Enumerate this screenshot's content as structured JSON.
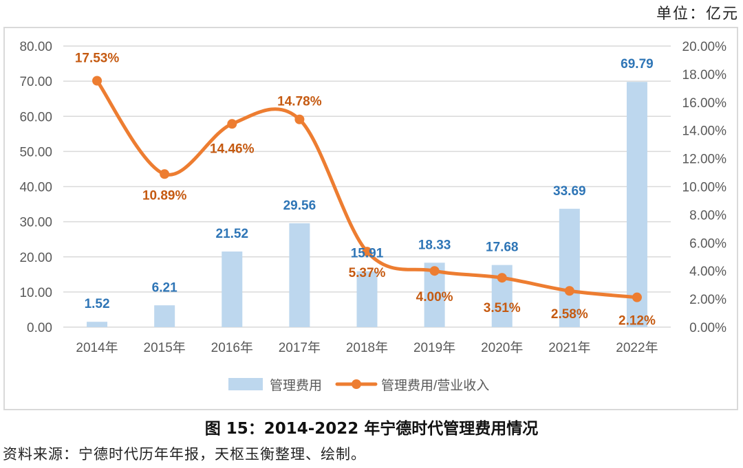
{
  "unit_label": "单位：亿元",
  "caption": "图 15：2014-2022 年宁德时代管理费用情况",
  "source": "资料来源：宁德时代历年年报，天枢玉衡整理、绘制。",
  "chart_data": {
    "type": "bar+line",
    "title": "图 15：2014-2022 年宁德时代管理费用情况",
    "unit": "亿元",
    "categories": [
      "2014年",
      "2015年",
      "2016年",
      "2017年",
      "2018年",
      "2019年",
      "2020年",
      "2021年",
      "2022年"
    ],
    "series": [
      {
        "name": "管理费用",
        "type": "bar",
        "axis": "left",
        "color": "#bdd7ee",
        "label_color": "#2e75b6",
        "values": [
          1.52,
          6.21,
          21.52,
          29.56,
          15.91,
          18.33,
          17.68,
          33.69,
          69.79
        ],
        "labels": [
          "1.52",
          "6.21",
          "21.52",
          "29.56",
          "15.91",
          "18.33",
          "17.68",
          "33.69",
          "69.79"
        ]
      },
      {
        "name": "管理费用/营业收入",
        "type": "line",
        "smooth": true,
        "axis": "right",
        "color": "#ed7d31",
        "label_color": "#c55a11",
        "values": [
          17.53,
          10.89,
          14.46,
          14.78,
          5.37,
          4.0,
          3.51,
          2.58,
          2.12
        ],
        "labels": [
          "17.53%",
          "10.89%",
          "14.46%",
          "14.78%",
          "5.37%",
          "4.00%",
          "3.51%",
          "2.58%",
          "2.12%"
        ]
      }
    ],
    "left_axis": {
      "ylim": [
        0,
        80
      ],
      "ticks": [
        "0.00",
        "10.00",
        "20.00",
        "30.00",
        "40.00",
        "50.00",
        "60.00",
        "70.00",
        "80.00"
      ]
    },
    "right_axis": {
      "ylim": [
        0,
        20
      ],
      "ticks": [
        "0.00%",
        "2.00%",
        "4.00%",
        "6.00%",
        "8.00%",
        "10.00%",
        "12.00%",
        "14.00%",
        "16.00%",
        "18.00%",
        "20.00%"
      ]
    },
    "grid": true,
    "legend": {
      "position": "bottom",
      "items": [
        "管理费用",
        "管理费用/营业收入"
      ]
    }
  }
}
